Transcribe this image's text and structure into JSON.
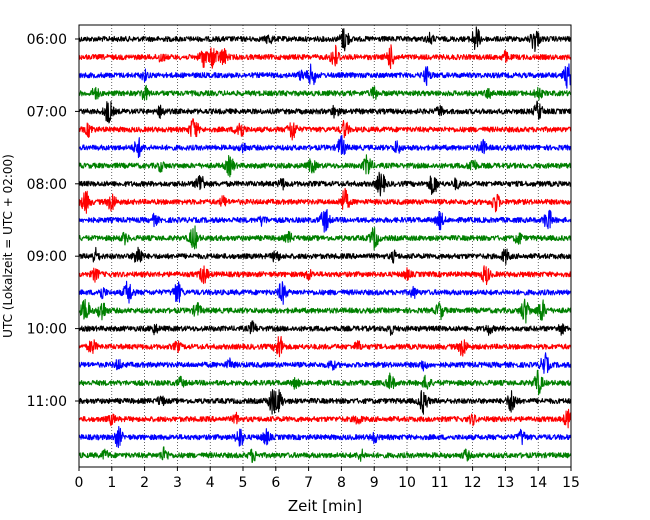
{
  "chart_data": {
    "type": "line",
    "xlabel": "Zeit  [min]",
    "ylabel": "UTC (Lokalzeit = UTC + 02:00)",
    "xlim": [
      0,
      15
    ],
    "x_ticks": [
      "0",
      "1",
      "2",
      "3",
      "4",
      "5",
      "6",
      "7",
      "8",
      "9",
      "10",
      "11",
      "12",
      "13",
      "14",
      "15"
    ],
    "y_tick_labels": [
      "06:00",
      "07:00",
      "08:00",
      "09:00",
      "10:00",
      "11:00"
    ],
    "grid": "vertical dotted",
    "trace_colors": [
      "#000000",
      "#ff0000",
      "#0000ff",
      "#008000"
    ],
    "traces_per_hour": 4,
    "minutes_per_trace": 15,
    "traces": [
      {
        "start": "06:00",
        "color": "#000000",
        "events": [
          [
            8.1,
            1.0
          ],
          [
            12.1,
            1.0
          ],
          [
            13.9,
            1.0
          ],
          [
            5.8,
            0.4
          ],
          [
            10.7,
            0.4
          ]
        ]
      },
      {
        "start": "06:15",
        "color": "#ff0000",
        "events": [
          [
            3.8,
            0.8
          ],
          [
            4.1,
            0.9
          ],
          [
            4.4,
            0.7
          ],
          [
            7.8,
            1.0
          ],
          [
            9.5,
            0.9
          ],
          [
            2.5,
            0.4
          ],
          [
            13.0,
            0.4
          ]
        ]
      },
      {
        "start": "06:30",
        "color": "#0000ff",
        "events": [
          [
            7.1,
            0.9
          ],
          [
            10.6,
            0.7
          ],
          [
            14.9,
            1.0
          ],
          [
            2.0,
            0.4
          ],
          [
            6.8,
            0.4
          ]
        ]
      },
      {
        "start": "06:45",
        "color": "#008000",
        "events": [
          [
            2.0,
            0.6
          ],
          [
            0.5,
            0.5
          ],
          [
            9.0,
            0.5
          ],
          [
            12.5,
            0.4
          ],
          [
            14.0,
            0.5
          ]
        ]
      },
      {
        "start": "07:00",
        "color": "#000000",
        "events": [
          [
            0.9,
            1.0
          ],
          [
            2.5,
            0.5
          ],
          [
            7.8,
            0.5
          ],
          [
            14.0,
            0.8
          ],
          [
            11.0,
            0.4
          ]
        ]
      },
      {
        "start": "07:15",
        "color": "#ff0000",
        "events": [
          [
            3.5,
            1.0
          ],
          [
            4.9,
            0.9
          ],
          [
            6.5,
            0.9
          ],
          [
            8.1,
            0.7
          ],
          [
            0.3,
            0.5
          ]
        ]
      },
      {
        "start": "07:30",
        "color": "#0000ff",
        "events": [
          [
            1.8,
            0.8
          ],
          [
            8.0,
            0.9
          ],
          [
            9.7,
            0.5
          ],
          [
            12.3,
            0.6
          ],
          [
            5.0,
            0.4
          ]
        ]
      },
      {
        "start": "07:45",
        "color": "#008000",
        "events": [
          [
            4.6,
            0.8
          ],
          [
            7.1,
            0.6
          ],
          [
            8.8,
            0.9
          ],
          [
            12.0,
            0.6
          ],
          [
            2.5,
            0.4
          ]
        ]
      },
      {
        "start": "08:00",
        "color": "#000000",
        "events": [
          [
            3.7,
            0.9
          ],
          [
            9.2,
            1.0
          ],
          [
            10.8,
            0.9
          ],
          [
            11.5,
            0.4
          ],
          [
            6.2,
            0.4
          ]
        ]
      },
      {
        "start": "08:15",
        "color": "#ff0000",
        "events": [
          [
            0.2,
            0.9
          ],
          [
            1.0,
            0.8
          ],
          [
            8.1,
            1.0
          ],
          [
            12.7,
            0.8
          ],
          [
            4.4,
            0.4
          ]
        ]
      },
      {
        "start": "08:30",
        "color": "#0000ff",
        "events": [
          [
            7.5,
            1.0
          ],
          [
            11.0,
            0.7
          ],
          [
            14.3,
            0.9
          ],
          [
            2.3,
            0.4
          ],
          [
            5.6,
            0.4
          ]
        ]
      },
      {
        "start": "08:45",
        "color": "#008000",
        "events": [
          [
            3.5,
            1.0
          ],
          [
            9.0,
            0.9
          ],
          [
            13.4,
            0.5
          ],
          [
            1.4,
            0.4
          ],
          [
            6.4,
            0.4
          ]
        ]
      },
      {
        "start": "09:00",
        "color": "#000000",
        "events": [
          [
            1.8,
            0.9
          ],
          [
            0.5,
            0.6
          ],
          [
            13.0,
            0.6
          ],
          [
            6.0,
            0.5
          ],
          [
            9.6,
            0.4
          ]
        ]
      },
      {
        "start": "09:15",
        "color": "#ff0000",
        "events": [
          [
            3.8,
            0.8
          ],
          [
            12.4,
            0.8
          ],
          [
            0.5,
            0.5
          ],
          [
            7.0,
            0.4
          ],
          [
            10.0,
            0.4
          ]
        ]
      },
      {
        "start": "09:30",
        "color": "#0000ff",
        "events": [
          [
            1.5,
            1.0
          ],
          [
            3.0,
            0.9
          ],
          [
            6.2,
            0.9
          ],
          [
            0.7,
            0.5
          ],
          [
            10.2,
            0.4
          ]
        ]
      },
      {
        "start": "09:45",
        "color": "#008000",
        "events": [
          [
            0.2,
            1.0
          ],
          [
            0.7,
            0.9
          ],
          [
            3.6,
            0.6
          ],
          [
            11.0,
            0.7
          ],
          [
            13.6,
            1.0
          ],
          [
            14.1,
            0.9
          ]
        ]
      },
      {
        "start": "10:00",
        "color": "#000000",
        "events": [
          [
            5.3,
            0.5
          ],
          [
            2.3,
            0.4
          ],
          [
            9.5,
            0.4
          ],
          [
            12.5,
            0.4
          ],
          [
            14.7,
            0.4
          ]
        ]
      },
      {
        "start": "10:15",
        "color": "#ff0000",
        "events": [
          [
            6.1,
            1.0
          ],
          [
            0.4,
            0.6
          ],
          [
            11.7,
            0.8
          ],
          [
            3.0,
            0.4
          ],
          [
            8.5,
            0.4
          ]
        ]
      },
      {
        "start": "10:30",
        "color": "#0000ff",
        "events": [
          [
            14.2,
            0.9
          ],
          [
            4.6,
            0.4
          ],
          [
            7.7,
            0.4
          ],
          [
            10.5,
            0.4
          ],
          [
            1.2,
            0.4
          ]
        ]
      },
      {
        "start": "10:45",
        "color": "#008000",
        "events": [
          [
            9.5,
            0.7
          ],
          [
            10.6,
            0.6
          ],
          [
            14.0,
            1.0
          ],
          [
            3.1,
            0.4
          ],
          [
            6.6,
            0.4
          ]
        ]
      },
      {
        "start": "11:00",
        "color": "#000000",
        "events": [
          [
            5.9,
            1.0
          ],
          [
            6.1,
            0.8
          ],
          [
            10.5,
            1.0
          ],
          [
            13.2,
            1.0
          ],
          [
            2.5,
            0.4
          ]
        ]
      },
      {
        "start": "11:15",
        "color": "#ff0000",
        "events": [
          [
            14.9,
            0.7
          ],
          [
            1.0,
            0.4
          ],
          [
            4.8,
            0.4
          ],
          [
            8.5,
            0.4
          ],
          [
            12.0,
            0.4
          ]
        ]
      },
      {
        "start": "11:30",
        "color": "#0000ff",
        "events": [
          [
            1.2,
            0.8
          ],
          [
            4.9,
            0.8
          ],
          [
            5.7,
            0.6
          ],
          [
            13.5,
            0.6
          ],
          [
            9.0,
            0.4
          ]
        ]
      },
      {
        "start": "11:45",
        "color": "#008000",
        "events": [
          [
            2.6,
            0.6
          ],
          [
            5.3,
            0.5
          ],
          [
            8.6,
            0.4
          ],
          [
            11.8,
            0.4
          ],
          [
            0.8,
            0.4
          ]
        ]
      }
    ]
  }
}
